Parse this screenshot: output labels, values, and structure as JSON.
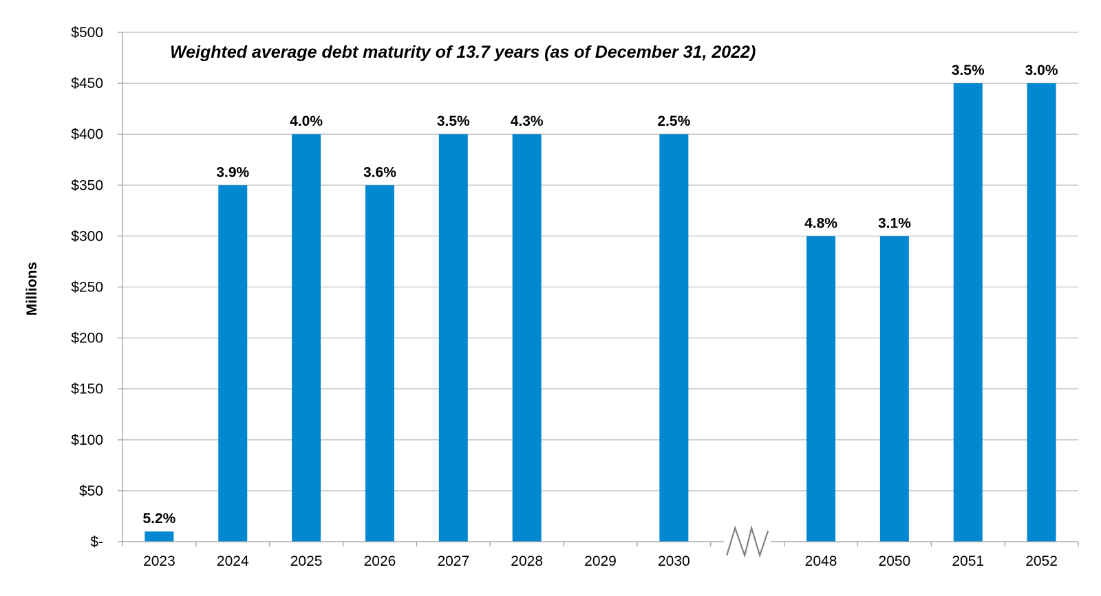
{
  "chart_data": {
    "type": "bar",
    "title": "Weighted average debt maturity of 13.7 years (as of December 31, 2022)",
    "xlabel": "",
    "ylabel": "Millions",
    "ylim": [
      0,
      500
    ],
    "y_ticks": [
      0,
      50,
      100,
      150,
      200,
      250,
      300,
      350,
      400,
      450,
      500
    ],
    "y_tick_labels": [
      "$-",
      "$50",
      "$100",
      "$150",
      "$200",
      "$250",
      "$300",
      "$350",
      "$400",
      "$450",
      "$500"
    ],
    "grid": true,
    "axis_break_after": "2030",
    "categories": [
      "2023",
      "2024",
      "2025",
      "2026",
      "2027",
      "2028",
      "2029",
      "2030",
      "",
      "2048",
      "2050",
      "2051",
      "2052"
    ],
    "values": [
      10,
      350,
      400,
      350,
      400,
      400,
      null,
      400,
      null,
      300,
      300,
      450,
      450
    ],
    "data_labels": [
      "5.2%",
      "3.9%",
      "4.0%",
      "3.6%",
      "3.5%",
      "4.3%",
      "",
      "2.5%",
      "",
      "4.8%",
      "3.1%",
      "3.5%",
      "3.0%"
    ],
    "colors": {
      "bar": "#0288D1",
      "grid": "#BFBFBF",
      "axis": "#9E9E9E",
      "break": "#808080"
    }
  }
}
